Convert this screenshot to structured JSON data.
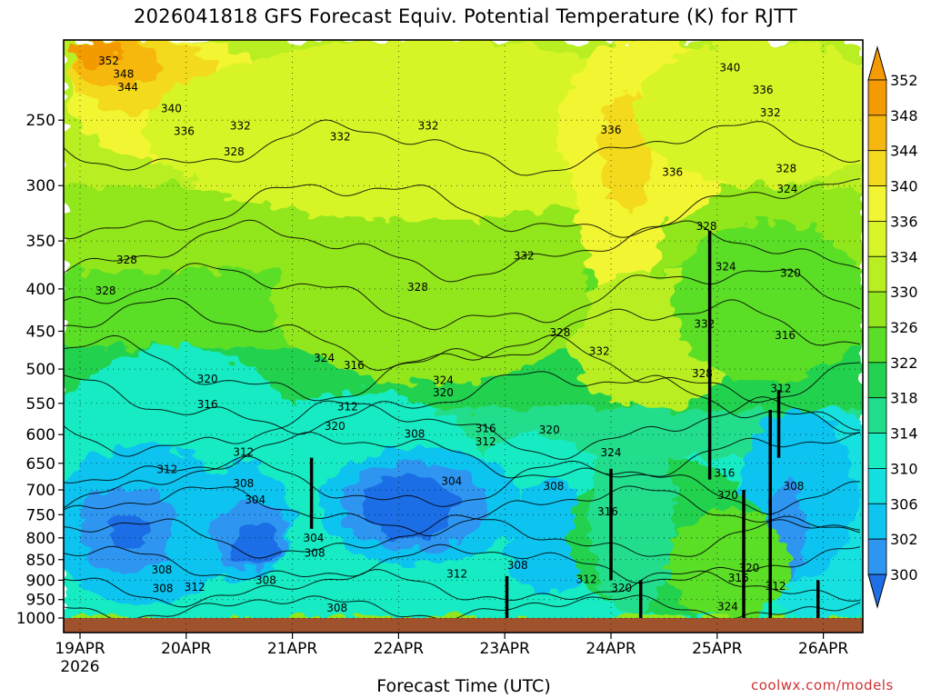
{
  "title": "2026041818 GFS Forecast Equiv. Potential Temperature (K) for RJTT",
  "credit": "coolwx.com/models",
  "chart_data": {
    "type": "heatmap",
    "title": "2026041818 GFS Forecast Equiv. Potential Temperature (K) for RJTT",
    "xlabel": "Forecast Time (UTC)",
    "ylabel": "",
    "variable_units": "K",
    "y_axis": {
      "scale": "log-pressure",
      "reversed": true,
      "ylim": [
        1000,
        200
      ],
      "ticks": [
        250,
        300,
        350,
        400,
        450,
        500,
        550,
        600,
        650,
        700,
        750,
        800,
        850,
        900,
        950,
        1000
      ]
    },
    "x_axis": {
      "range_days": [
        0,
        7.5
      ],
      "ticks": [
        {
          "day": 0,
          "label": "19APR",
          "sublabel": "2026"
        },
        {
          "day": 1,
          "label": "20APR"
        },
        {
          "day": 2,
          "label": "21APR"
        },
        {
          "day": 3,
          "label": "22APR"
        },
        {
          "day": 4,
          "label": "23APR"
        },
        {
          "day": 5,
          "label": "24APR"
        },
        {
          "day": 6,
          "label": "25APR"
        },
        {
          "day": 7,
          "label": "26APR"
        }
      ]
    },
    "grid": true,
    "colorbar": {
      "placement": "right",
      "levels": [
        300,
        302,
        306,
        310,
        314,
        318,
        322,
        326,
        330,
        334,
        336,
        340,
        344,
        348,
        352
      ],
      "labels": [
        "352",
        "348",
        "344",
        "340",
        "336",
        "334",
        "330",
        "326",
        "322",
        "318",
        "314",
        "310",
        "306",
        "302",
        "300"
      ],
      "colors": [
        "#1e6ee6",
        "#2f96f0",
        "#10c4f0",
        "#14e0e0",
        "#19ebc3",
        "#20dd8c",
        "#22d250",
        "#5ade28",
        "#92e61e",
        "#b9ef22",
        "#d7f528",
        "#f2f533",
        "#f4da1e",
        "#f6b80e",
        "#f39a05"
      ]
    },
    "contour_labels": [
      {
        "text": "352",
        "day": 0.27,
        "p": 212
      },
      {
        "text": "348",
        "day": 0.41,
        "p": 220
      },
      {
        "text": "344",
        "day": 0.45,
        "p": 228
      },
      {
        "text": "340",
        "day": 0.86,
        "p": 242
      },
      {
        "text": "336",
        "day": 0.98,
        "p": 258
      },
      {
        "text": "332",
        "day": 1.51,
        "p": 254
      },
      {
        "text": "328",
        "day": 1.45,
        "p": 273
      },
      {
        "text": "332",
        "day": 2.45,
        "p": 262
      },
      {
        "text": "332",
        "day": 3.28,
        "p": 254
      },
      {
        "text": "336",
        "day": 5.0,
        "p": 257
      },
      {
        "text": "336",
        "day": 5.58,
        "p": 289
      },
      {
        "text": "340",
        "day": 6.12,
        "p": 216
      },
      {
        "text": "336",
        "day": 6.43,
        "p": 230
      },
      {
        "text": "332",
        "day": 6.5,
        "p": 245
      },
      {
        "text": "328",
        "day": 6.65,
        "p": 286
      },
      {
        "text": "324",
        "day": 6.66,
        "p": 303
      },
      {
        "text": "328",
        "day": 0.44,
        "p": 369
      },
      {
        "text": "328",
        "day": 0.24,
        "p": 402
      },
      {
        "text": "328",
        "day": 3.18,
        "p": 398
      },
      {
        "text": "332",
        "day": 4.18,
        "p": 365
      },
      {
        "text": "328",
        "day": 5.9,
        "p": 336
      },
      {
        "text": "324",
        "day": 6.08,
        "p": 376
      },
      {
        "text": "320",
        "day": 6.69,
        "p": 383
      },
      {
        "text": "332",
        "day": 4.89,
        "p": 476
      },
      {
        "text": "332",
        "day": 5.88,
        "p": 441
      },
      {
        "text": "328",
        "day": 5.86,
        "p": 506
      },
      {
        "text": "316",
        "day": 6.64,
        "p": 455
      },
      {
        "text": "324",
        "day": 2.3,
        "p": 485
      },
      {
        "text": "316",
        "day": 2.58,
        "p": 495
      },
      {
        "text": "328",
        "day": 4.52,
        "p": 452
      },
      {
        "text": "324",
        "day": 3.42,
        "p": 516
      },
      {
        "text": "320",
        "day": 3.42,
        "p": 534
      },
      {
        "text": "312",
        "day": 6.6,
        "p": 528
      },
      {
        "text": "320",
        "day": 1.2,
        "p": 514
      },
      {
        "text": "316",
        "day": 1.2,
        "p": 552
      },
      {
        "text": "312",
        "day": 2.52,
        "p": 555
      },
      {
        "text": "320",
        "day": 2.4,
        "p": 586
      },
      {
        "text": "308",
        "day": 3.15,
        "p": 599
      },
      {
        "text": "316",
        "day": 3.82,
        "p": 590
      },
      {
        "text": "312",
        "day": 3.82,
        "p": 612
      },
      {
        "text": "320",
        "day": 4.42,
        "p": 592
      },
      {
        "text": "324",
        "day": 5.0,
        "p": 631
      },
      {
        "text": "312",
        "day": 0.82,
        "p": 661
      },
      {
        "text": "312",
        "day": 1.54,
        "p": 630
      },
      {
        "text": "308",
        "day": 1.54,
        "p": 688
      },
      {
        "text": "304",
        "day": 1.65,
        "p": 720
      },
      {
        "text": "304",
        "day": 3.5,
        "p": 683
      },
      {
        "text": "308",
        "day": 4.46,
        "p": 693
      },
      {
        "text": "316",
        "day": 6.07,
        "p": 668
      },
      {
        "text": "320",
        "day": 6.1,
        "p": 711
      },
      {
        "text": "308",
        "day": 6.72,
        "p": 693
      },
      {
        "text": "316",
        "day": 4.97,
        "p": 744
      },
      {
        "text": "304",
        "day": 2.2,
        "p": 800
      },
      {
        "text": "308",
        "day": 2.21,
        "p": 834
      },
      {
        "text": "308",
        "day": 0.77,
        "p": 874
      },
      {
        "text": "308",
        "day": 1.75,
        "p": 900
      },
      {
        "text": "312",
        "day": 3.55,
        "p": 884
      },
      {
        "text": "308",
        "day": 4.12,
        "p": 863
      },
      {
        "text": "312",
        "day": 4.77,
        "p": 898
      },
      {
        "text": "320",
        "day": 5.1,
        "p": 920
      },
      {
        "text": "308",
        "day": 0.78,
        "p": 921
      },
      {
        "text": "312",
        "day": 1.08,
        "p": 917
      },
      {
        "text": "316",
        "day": 6.2,
        "p": 895
      },
      {
        "text": "320",
        "day": 6.3,
        "p": 870
      },
      {
        "text": "312",
        "day": 6.55,
        "p": 915
      },
      {
        "text": "308",
        "day": 2.42,
        "p": 973
      },
      {
        "text": "324",
        "day": 6.1,
        "p": 969
      }
    ]
  }
}
